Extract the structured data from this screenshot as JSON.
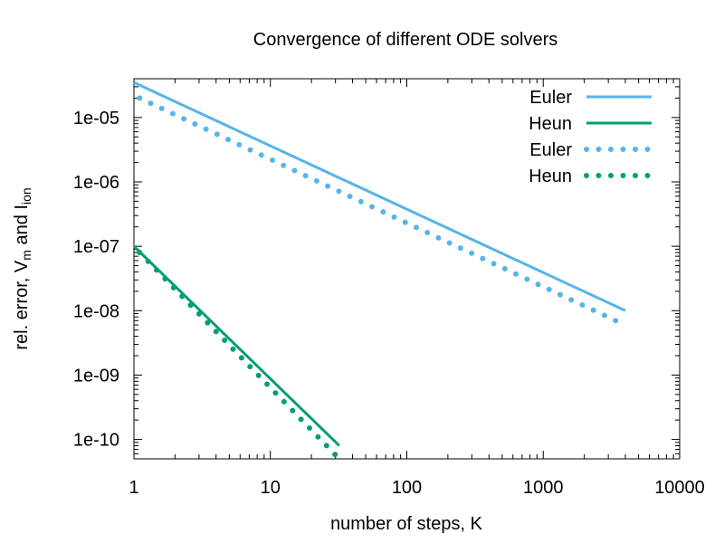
{
  "chart_data": {
    "type": "line",
    "title": "Convergence of different ODE solvers",
    "xlabel": "number of steps, K",
    "ylabel": {
      "prefix": "rel. error, V",
      "sub1": "m",
      "middle": " and I",
      "sub2": "ion"
    },
    "xscale": "log",
    "yscale": "log",
    "xlim": [
      1,
      10000
    ],
    "ylim": [
      5e-11,
      4e-05
    ],
    "x_ticks": [
      1,
      10,
      100,
      1000,
      10000
    ],
    "x_tick_labels": [
      "1",
      "10",
      "100",
      "1000",
      "10000"
    ],
    "y_ticks": [
      1e-10,
      1e-09,
      1e-08,
      1e-07,
      1e-06,
      1e-05
    ],
    "y_tick_labels": [
      "1e-10",
      "1e-09",
      "1e-08",
      "1e-07",
      "1e-06",
      "1e-05"
    ],
    "grid": false,
    "legend_position": "top-right",
    "series": [
      {
        "name": "Euler",
        "style": "solid",
        "color": "#56b4e9",
        "x": [
          1,
          4000
        ],
        "y": [
          3.5e-05,
          1e-08
        ]
      },
      {
        "name": "Heun",
        "style": "solid",
        "color": "#009e73",
        "x": [
          1,
          32
        ],
        "y": [
          1e-07,
          8e-11
        ]
      },
      {
        "name": "Euler",
        "style": "dotted",
        "color": "#56b4e9",
        "x": [
          1.1,
          3400
        ],
        "y": [
          2e-05,
          7e-09
        ]
      },
      {
        "name": "Heun",
        "style": "dotted",
        "color": "#009e73",
        "x": [
          1.1,
          32
        ],
        "y": [
          8e-08,
          5e-11
        ]
      }
    ]
  }
}
